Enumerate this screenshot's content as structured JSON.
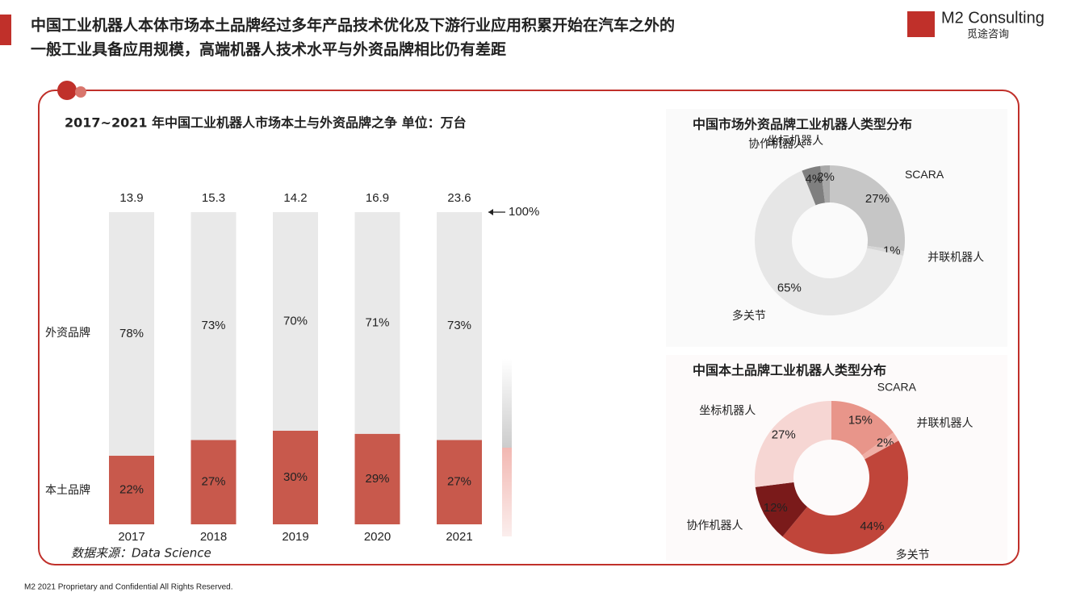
{
  "header": {
    "title_lines": [
      "中国工业机器人本体市场本土品牌经过多年产品技术优化及下游行业应用积累开始在汽车之外的",
      "一般工业具备应用规模，高端机器人技术水平与外资品牌相比仍有差距"
    ],
    "logo": "M2 Consulting",
    "logo_sub": "觅途咨询"
  },
  "chart_data": [
    {
      "type": "bar",
      "title": "2017~2021 年中国工业机器人市场本土与外资品牌之争  单位：万台",
      "categories": [
        "2017",
        "2018",
        "2019",
        "2020",
        "2021"
      ],
      "totals": [
        13.9,
        15.3,
        14.2,
        16.9,
        23.6
      ],
      "series": [
        {
          "name": "本土品牌",
          "color": "#c8594c",
          "values": [
            22,
            27,
            30,
            29,
            27
          ],
          "value_labels": [
            "22%",
            "27%",
            "30%",
            "29%",
            "27%"
          ]
        },
        {
          "name": "外资品牌",
          "color": "#e9e9e9",
          "values": [
            78,
            73,
            70,
            71,
            73
          ],
          "value_labels": [
            "78%",
            "73%",
            "70%",
            "71%",
            "73%"
          ]
        }
      ],
      "ylim": [
        0,
        100
      ],
      "annotation": "100%"
    },
    {
      "type": "pie",
      "title": "中国市场外资品牌工业机器人类型分布",
      "categories": [
        "SCARA",
        "并联机器人",
        "多关节",
        "协作机器人",
        "坐标机器人"
      ],
      "values": [
        27,
        1,
        65,
        4,
        2
      ],
      "value_labels": [
        "27%",
        "1%",
        "65%",
        "4%",
        "2%"
      ],
      "colors": [
        "#c6c6c6",
        "#d6d6d6",
        "#e6e6e6",
        "#7f7f7f",
        "#a8a8a8"
      ]
    },
    {
      "type": "pie",
      "title": "中国本土品牌工业机器人类型分布",
      "categories": [
        "SCARA",
        "并联机器人",
        "多关节",
        "协作机器人",
        "坐标机器人"
      ],
      "values": [
        15,
        2,
        44,
        12,
        27
      ],
      "value_labels": [
        "15%",
        "2%",
        "44%",
        "12%",
        "27%"
      ],
      "colors": [
        "#e8958a",
        "#f0aea5",
        "#c0453a",
        "#7a1a1a",
        "#f6d6d3"
      ]
    }
  ],
  "source": "数据来源：Data Science",
  "footer": "M2  2021 Proprietary and Confidential All Rights Reserved."
}
